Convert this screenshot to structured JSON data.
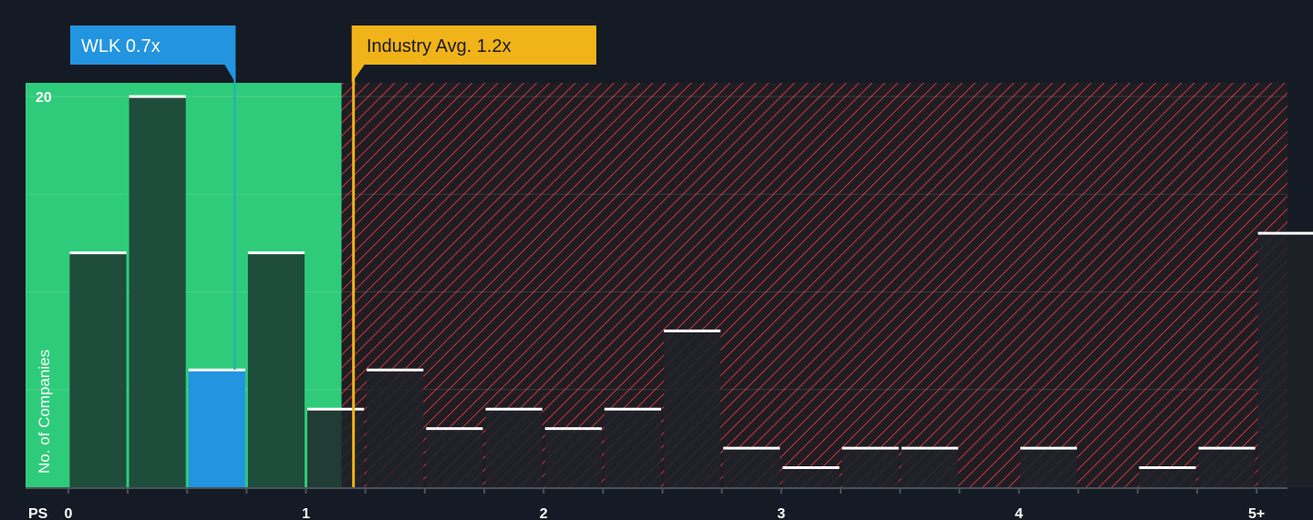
{
  "chart_data": {
    "type": "bar",
    "ylabel": "No. of Companies",
    "xlabel": "PS",
    "x_ticks": [
      {
        "value": 0,
        "label": "0"
      },
      {
        "value": 1,
        "label": "1"
      },
      {
        "value": 2,
        "label": "2"
      },
      {
        "value": 3,
        "label": "3"
      },
      {
        "value": 4,
        "label": "4"
      },
      {
        "value": 5,
        "label": "5+"
      }
    ],
    "y_ticks": [
      {
        "value": 20,
        "label": "20"
      }
    ],
    "ylim": [
      0,
      20.7
    ],
    "xlim": [
      -0.18,
      5.13
    ],
    "bin_width": 0.25,
    "bins": [
      {
        "start": 0.0,
        "value": 12
      },
      {
        "start": 0.25,
        "value": 20
      },
      {
        "start": 0.5,
        "value": 6,
        "highlight": true
      },
      {
        "start": 0.75,
        "value": 12
      },
      {
        "start": 1.0,
        "value": 4
      },
      {
        "start": 1.25,
        "value": 6
      },
      {
        "start": 1.5,
        "value": 3
      },
      {
        "start": 1.75,
        "value": 4
      },
      {
        "start": 2.0,
        "value": 3
      },
      {
        "start": 2.25,
        "value": 4
      },
      {
        "start": 2.5,
        "value": 8
      },
      {
        "start": 2.75,
        "value": 2
      },
      {
        "start": 3.0,
        "value": 1
      },
      {
        "start": 3.25,
        "value": 2
      },
      {
        "start": 3.5,
        "value": 2
      },
      {
        "start": 3.75,
        "value": 0
      },
      {
        "start": 4.0,
        "value": 2
      },
      {
        "start": 4.25,
        "value": 0
      },
      {
        "start": 4.5,
        "value": 1
      },
      {
        "start": 4.75,
        "value": 2
      },
      {
        "start": 5.0,
        "value": 13
      }
    ],
    "company": {
      "label": "WLK 0.7x",
      "value": 0.7
    },
    "industry": {
      "label": "Industry Avg. 1.2x",
      "value": 1.2
    },
    "fair_zone_end": 1.15,
    "grid": true
  },
  "colors": {
    "background": "#151b24",
    "green_zone": "#2ecc7a",
    "bar_in_green": "#1f4d3b",
    "bar_in_red": "#1f2228",
    "highlight_bar": "#2394e0",
    "company_tag": "#2394e0",
    "industry_tag": "#f0b319",
    "hatch": "#b8383f"
  }
}
